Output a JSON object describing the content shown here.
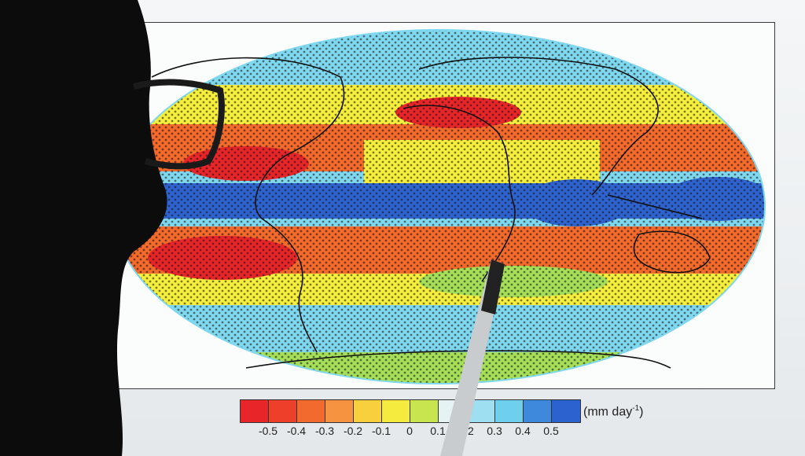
{
  "scene": {
    "subject": "person-silhouette",
    "pointer": "pen"
  },
  "map": {
    "colors": {
      "strong_dry": "#e8262a",
      "dry": "#f46a2c",
      "slight_dry": "#f7c13a",
      "neutral": "#f7ef3e",
      "slight_wet": "#a6e05a",
      "wet": "#7fd8ef",
      "very_wet": "#2f63cf",
      "stipple": "#111111",
      "coast": "#111111"
    }
  },
  "legend": {
    "unit_prefix": "(mm day",
    "unit_exp": "-1",
    "unit_suffix": ")",
    "colors": [
      "#e8262a",
      "#ee3f2b",
      "#f26a2e",
      "#f59341",
      "#f8cf3c",
      "#f5ea3e",
      "#c8e550",
      "#e6f3f5",
      "#9edff1",
      "#6fd0ee",
      "#3f89dc",
      "#2c62cf"
    ],
    "ticks": [
      "-0.5",
      "-0.4",
      "-0.3",
      "-0.2",
      "-0.1",
      "0",
      "0.1",
      "0.2",
      "0.3",
      "0.4",
      "0.5"
    ]
  }
}
